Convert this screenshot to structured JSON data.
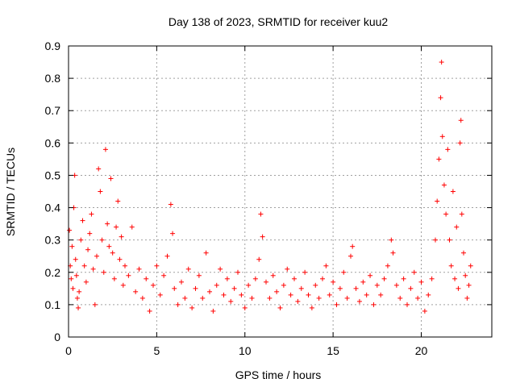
{
  "chart_data": {
    "type": "scatter",
    "title": "Day 138 of 2023, SRMTID for receiver kuu2",
    "xlabel": "GPS time / hours",
    "ylabel": "SRMTID / TECUs",
    "xlim": [
      0,
      24
    ],
    "ylim": [
      0,
      0.9
    ],
    "x_ticks": [
      0,
      5,
      10,
      15,
      20
    ],
    "x_tick_labels": [
      "0",
      "5",
      "10",
      "15",
      "20"
    ],
    "y_ticks": [
      0,
      0.1,
      0.2,
      0.3,
      0.4,
      0.5,
      0.6,
      0.7,
      0.8,
      0.9
    ],
    "y_tick_labels": [
      "0",
      "0.1",
      "0.2",
      "0.3",
      "0.4",
      "0.5",
      "0.6",
      "0.7",
      "0.8",
      "0.9"
    ],
    "grid": true,
    "marker": "+",
    "color": "#ff0000",
    "series": [
      {
        "name": "SRMTID",
        "points": [
          [
            0.05,
            0.33
          ],
          [
            0.1,
            0.22
          ],
          [
            0.15,
            0.18
          ],
          [
            0.2,
            0.28
          ],
          [
            0.25,
            0.15
          ],
          [
            0.3,
            0.4
          ],
          [
            0.35,
            0.5
          ],
          [
            0.4,
            0.24
          ],
          [
            0.45,
            0.19
          ],
          [
            0.5,
            0.12
          ],
          [
            0.55,
            0.09
          ],
          [
            0.6,
            0.14
          ],
          [
            0.7,
            0.3
          ],
          [
            0.8,
            0.36
          ],
          [
            0.9,
            0.22
          ],
          [
            1.0,
            0.17
          ],
          [
            1.1,
            0.27
          ],
          [
            1.2,
            0.32
          ],
          [
            1.3,
            0.38
          ],
          [
            1.4,
            0.21
          ],
          [
            1.5,
            0.1
          ],
          [
            1.6,
            0.25
          ],
          [
            1.7,
            0.52
          ],
          [
            1.8,
            0.45
          ],
          [
            1.9,
            0.3
          ],
          [
            2.0,
            0.2
          ],
          [
            2.1,
            0.58
          ],
          [
            2.2,
            0.35
          ],
          [
            2.3,
            0.28
          ],
          [
            2.4,
            0.49
          ],
          [
            2.5,
            0.26
          ],
          [
            2.6,
            0.18
          ],
          [
            2.7,
            0.34
          ],
          [
            2.8,
            0.42
          ],
          [
            2.9,
            0.24
          ],
          [
            3.0,
            0.31
          ],
          [
            3.1,
            0.16
          ],
          [
            3.2,
            0.22
          ],
          [
            3.4,
            0.19
          ],
          [
            3.6,
            0.34
          ],
          [
            3.8,
            0.14
          ],
          [
            4.0,
            0.21
          ],
          [
            4.2,
            0.12
          ],
          [
            4.4,
            0.18
          ],
          [
            4.6,
            0.08
          ],
          [
            4.8,
            0.16
          ],
          [
            5.0,
            0.22
          ],
          [
            5.2,
            0.13
          ],
          [
            5.4,
            0.19
          ],
          [
            5.6,
            0.25
          ],
          [
            5.8,
            0.41
          ],
          [
            5.9,
            0.32
          ],
          [
            6.0,
            0.15
          ],
          [
            6.2,
            0.1
          ],
          [
            6.4,
            0.17
          ],
          [
            6.6,
            0.12
          ],
          [
            6.8,
            0.21
          ],
          [
            7.0,
            0.09
          ],
          [
            7.2,
            0.15
          ],
          [
            7.4,
            0.19
          ],
          [
            7.6,
            0.12
          ],
          [
            7.8,
            0.26
          ],
          [
            8.0,
            0.14
          ],
          [
            8.2,
            0.08
          ],
          [
            8.4,
            0.16
          ],
          [
            8.6,
            0.21
          ],
          [
            8.8,
            0.13
          ],
          [
            9.0,
            0.18
          ],
          [
            9.2,
            0.11
          ],
          [
            9.4,
            0.15
          ],
          [
            9.6,
            0.2
          ],
          [
            9.8,
            0.13
          ],
          [
            10.0,
            0.09
          ],
          [
            10.2,
            0.16
          ],
          [
            10.4,
            0.12
          ],
          [
            10.6,
            0.18
          ],
          [
            10.8,
            0.24
          ],
          [
            10.9,
            0.38
          ],
          [
            11.0,
            0.31
          ],
          [
            11.2,
            0.17
          ],
          [
            11.4,
            0.12
          ],
          [
            11.6,
            0.19
          ],
          [
            11.8,
            0.14
          ],
          [
            12.0,
            0.09
          ],
          [
            12.2,
            0.16
          ],
          [
            12.4,
            0.21
          ],
          [
            12.6,
            0.13
          ],
          [
            12.8,
            0.18
          ],
          [
            13.0,
            0.11
          ],
          [
            13.2,
            0.15
          ],
          [
            13.4,
            0.2
          ],
          [
            13.6,
            0.13
          ],
          [
            13.8,
            0.09
          ],
          [
            14.0,
            0.16
          ],
          [
            14.2,
            0.12
          ],
          [
            14.4,
            0.18
          ],
          [
            14.6,
            0.22
          ],
          [
            14.8,
            0.13
          ],
          [
            15.0,
            0.17
          ],
          [
            15.2,
            0.1
          ],
          [
            15.4,
            0.15
          ],
          [
            15.6,
            0.2
          ],
          [
            15.8,
            0.12
          ],
          [
            16.0,
            0.25
          ],
          [
            16.1,
            0.28
          ],
          [
            16.3,
            0.15
          ],
          [
            16.5,
            0.11
          ],
          [
            16.7,
            0.17
          ],
          [
            16.9,
            0.13
          ],
          [
            17.1,
            0.19
          ],
          [
            17.3,
            0.1
          ],
          [
            17.5,
            0.16
          ],
          [
            17.7,
            0.13
          ],
          [
            17.9,
            0.18
          ],
          [
            18.1,
            0.22
          ],
          [
            18.3,
            0.3
          ],
          [
            18.4,
            0.26
          ],
          [
            18.6,
            0.16
          ],
          [
            18.8,
            0.12
          ],
          [
            19.0,
            0.18
          ],
          [
            19.2,
            0.1
          ],
          [
            19.4,
            0.15
          ],
          [
            19.6,
            0.2
          ],
          [
            19.8,
            0.12
          ],
          [
            20.0,
            0.17
          ],
          [
            20.2,
            0.08
          ],
          [
            20.4,
            0.13
          ],
          [
            20.6,
            0.18
          ],
          [
            20.8,
            0.3
          ],
          [
            20.9,
            0.42
          ],
          [
            21.0,
            0.55
          ],
          [
            21.1,
            0.74
          ],
          [
            21.15,
            0.85
          ],
          [
            21.2,
            0.62
          ],
          [
            21.3,
            0.47
          ],
          [
            21.4,
            0.38
          ],
          [
            21.5,
            0.58
          ],
          [
            21.6,
            0.3
          ],
          [
            21.7,
            0.22
          ],
          [
            21.8,
            0.45
          ],
          [
            21.9,
            0.18
          ],
          [
            22.0,
            0.34
          ],
          [
            22.1,
            0.15
          ],
          [
            22.2,
            0.6
          ],
          [
            22.25,
            0.67
          ],
          [
            22.3,
            0.38
          ],
          [
            22.4,
            0.26
          ],
          [
            22.5,
            0.19
          ],
          [
            22.6,
            0.12
          ],
          [
            22.7,
            0.16
          ],
          [
            22.8,
            0.22
          ]
        ]
      }
    ]
  }
}
